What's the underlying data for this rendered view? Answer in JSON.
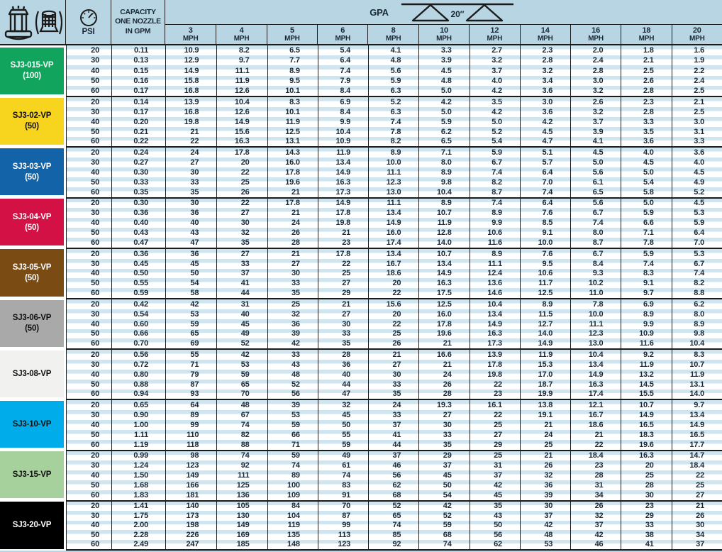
{
  "colors": {
    "table_background": "#b7d5e2",
    "row_stripe": "#cfe6f0",
    "grid_line": "#1b1b1b",
    "text": "#1a2836"
  },
  "icons": {
    "top_left": [
      "nozzle-tip-icon",
      "strainer-icon"
    ],
    "psi": "pressure-gauge-icon",
    "gpa": "spray-boom-spacing-icon"
  },
  "chart_data": {
    "type": "table",
    "header": {
      "psi_label": "PSI",
      "capacity_label_lines": [
        "CAPACITY",
        "ONE NOZZLE",
        "IN GPM"
      ],
      "gpa_label": "GPA",
      "nozzle_spacing": "20″",
      "speed_unit": "MPH",
      "speed_columns": [
        "3",
        "4",
        "5",
        "6",
        "8",
        "10",
        "12",
        "14",
        "16",
        "18",
        "20"
      ]
    },
    "groups": [
      {
        "nozzle": "SJ3-015-VP",
        "mesh": "(100)",
        "color": "#10a45c",
        "text_color": "#ffffff",
        "rows": [
          {
            "psi": "20",
            "gpm": "0.11",
            "gpa": [
              "10.9",
              "8.2",
              "6.5",
              "5.4",
              "4.1",
              "3.3",
              "2.7",
              "2.3",
              "2.0",
              "1.8",
              "1.6"
            ]
          },
          {
            "psi": "30",
            "gpm": "0.13",
            "gpa": [
              "12.9",
              "9.7",
              "7.7",
              "6.4",
              "4.8",
              "3.9",
              "3.2",
              "2.8",
              "2.4",
              "2.1",
              "1.9"
            ]
          },
          {
            "psi": "40",
            "gpm": "0.15",
            "gpa": [
              "14.9",
              "11.1",
              "8.9",
              "7.4",
              "5.6",
              "4.5",
              "3.7",
              "3.2",
              "2.8",
              "2.5",
              "2.2"
            ]
          },
          {
            "psi": "50",
            "gpm": "0.16",
            "gpa": [
              "15.8",
              "11.9",
              "9.5",
              "7.9",
              "5.9",
              "4.8",
              "4.0",
              "3.4",
              "3.0",
              "2.6",
              "2.4"
            ]
          },
          {
            "psi": "60",
            "gpm": "0.17",
            "gpa": [
              "16.8",
              "12.6",
              "10.1",
              "8.4",
              "6.3",
              "5.0",
              "4.2",
              "3.6",
              "3.2",
              "2.8",
              "2.5"
            ]
          }
        ]
      },
      {
        "nozzle": "SJ3-02-VP",
        "mesh": "(50)",
        "color": "#f7d41e",
        "text_color": "#111111",
        "rows": [
          {
            "psi": "20",
            "gpm": "0.14",
            "gpa": [
              "13.9",
              "10.4",
              "8.3",
              "6.9",
              "5.2",
              "4.2",
              "3.5",
              "3.0",
              "2.6",
              "2.3",
              "2.1"
            ]
          },
          {
            "psi": "30",
            "gpm": "0.17",
            "gpa": [
              "16.8",
              "12.6",
              "10.1",
              "8.4",
              "6.3",
              "5.0",
              "4.2",
              "3.6",
              "3.2",
              "2.8",
              "2.5"
            ]
          },
          {
            "psi": "40",
            "gpm": "0.20",
            "gpa": [
              "19.8",
              "14.9",
              "11.9",
              "9.9",
              "7.4",
              "5.9",
              "5.0",
              "4.2",
              "3.7",
              "3.3",
              "3.0"
            ]
          },
          {
            "psi": "50",
            "gpm": "0.21",
            "gpa": [
              "21",
              "15.6",
              "12.5",
              "10.4",
              "7.8",
              "6.2",
              "5.2",
              "4.5",
              "3.9",
              "3.5",
              "3.1"
            ]
          },
          {
            "psi": "60",
            "gpm": "0.22",
            "gpa": [
              "22",
              "16.3",
              "13.1",
              "10.9",
              "8.2",
              "6.5",
              "5.4",
              "4.7",
              "4.1",
              "3.6",
              "3.3"
            ]
          }
        ]
      },
      {
        "nozzle": "SJ3-03-VP",
        "mesh": "(50)",
        "color": "#1263a8",
        "text_color": "#ffffff",
        "rows": [
          {
            "psi": "20",
            "gpm": "0.24",
            "gpa": [
              "24",
              "17.8",
              "14.3",
              "11.9",
              "8.9",
              "7.1",
              "5.9",
              "5.1",
              "4.5",
              "4.0",
              "3.6"
            ]
          },
          {
            "psi": "30",
            "gpm": "0.27",
            "gpa": [
              "27",
              "20",
              "16.0",
              "13.4",
              "10.0",
              "8.0",
              "6.7",
              "5.7",
              "5.0",
              "4.5",
              "4.0"
            ]
          },
          {
            "psi": "40",
            "gpm": "0.30",
            "gpa": [
              "30",
              "22",
              "17.8",
              "14.9",
              "11.1",
              "8.9",
              "7.4",
              "6.4",
              "5.6",
              "5.0",
              "4.5"
            ]
          },
          {
            "psi": "50",
            "gpm": "0.33",
            "gpa": [
              "33",
              "25",
              "19.6",
              "16.3",
              "12.3",
              "9.8",
              "8.2",
              "7.0",
              "6.1",
              "5.4",
              "4.9"
            ]
          },
          {
            "psi": "60",
            "gpm": "0.35",
            "gpa": [
              "35",
              "26",
              "21",
              "17.3",
              "13.0",
              "10.4",
              "8.7",
              "7.4",
              "6.5",
              "5.8",
              "5.2"
            ]
          }
        ]
      },
      {
        "nozzle": "SJ3-04-VP",
        "mesh": "(50)",
        "color": "#d31145",
        "text_color": "#ffffff",
        "rows": [
          {
            "psi": "20",
            "gpm": "0.30",
            "gpa": [
              "30",
              "22",
              "17.8",
              "14.9",
              "11.1",
              "8.9",
              "7.4",
              "6.4",
              "5.6",
              "5.0",
              "4.5"
            ]
          },
          {
            "psi": "30",
            "gpm": "0.36",
            "gpa": [
              "36",
              "27",
              "21",
              "17.8",
              "13.4",
              "10.7",
              "8.9",
              "7.6",
              "6.7",
              "5.9",
              "5.3"
            ]
          },
          {
            "psi": "40",
            "gpm": "0.40",
            "gpa": [
              "40",
              "30",
              "24",
              "19.8",
              "14.9",
              "11.9",
              "9.9",
              "8.5",
              "7.4",
              "6.6",
              "5.9"
            ]
          },
          {
            "psi": "50",
            "gpm": "0.43",
            "gpa": [
              "43",
              "32",
              "26",
              "21",
              "16.0",
              "12.8",
              "10.6",
              "9.1",
              "8.0",
              "7.1",
              "6.4"
            ]
          },
          {
            "psi": "60",
            "gpm": "0.47",
            "gpa": [
              "47",
              "35",
              "28",
              "23",
              "17.4",
              "14.0",
              "11.6",
              "10.0",
              "8.7",
              "7.8",
              "7.0"
            ]
          }
        ]
      },
      {
        "nozzle": "SJ3-05-VP",
        "mesh": "(50)",
        "color": "#7b4b14",
        "text_color": "#ffffff",
        "rows": [
          {
            "psi": "20",
            "gpm": "0.36",
            "gpa": [
              "36",
              "27",
              "21",
              "17.8",
              "13.4",
              "10.7",
              "8.9",
              "7.6",
              "6.7",
              "5.9",
              "5.3"
            ]
          },
          {
            "psi": "30",
            "gpm": "0.45",
            "gpa": [
              "45",
              "33",
              "27",
              "22",
              "16.7",
              "13.4",
              "11.1",
              "9.5",
              "8.4",
              "7.4",
              "6.7"
            ]
          },
          {
            "psi": "40",
            "gpm": "0.50",
            "gpa": [
              "50",
              "37",
              "30",
              "25",
              "18.6",
              "14.9",
              "12.4",
              "10.6",
              "9.3",
              "8.3",
              "7.4"
            ]
          },
          {
            "psi": "50",
            "gpm": "0.55",
            "gpa": [
              "54",
              "41",
              "33",
              "27",
              "20",
              "16.3",
              "13.6",
              "11.7",
              "10.2",
              "9.1",
              "8.2"
            ]
          },
          {
            "psi": "60",
            "gpm": "0.59",
            "gpa": [
              "58",
              "44",
              "35",
              "29",
              "22",
              "17.5",
              "14.6",
              "12.5",
              "11.0",
              "9.7",
              "8.8"
            ]
          }
        ]
      },
      {
        "nozzle": "SJ3-06-VP",
        "mesh": "(50)",
        "color": "#a9a9a9",
        "text_color": "#111111",
        "rows": [
          {
            "psi": "20",
            "gpm": "0.42",
            "gpa": [
              "42",
              "31",
              "25",
              "21",
              "15.6",
              "12.5",
              "10.4",
              "8.9",
              "7.8",
              "6.9",
              "6.2"
            ]
          },
          {
            "psi": "30",
            "gpm": "0.54",
            "gpa": [
              "53",
              "40",
              "32",
              "27",
              "20",
              "16.0",
              "13.4",
              "11.5",
              "10.0",
              "8.9",
              "8.0"
            ]
          },
          {
            "psi": "40",
            "gpm": "0.60",
            "gpa": [
              "59",
              "45",
              "36",
              "30",
              "22",
              "17.8",
              "14.9",
              "12.7",
              "11.1",
              "9.9",
              "8.9"
            ]
          },
          {
            "psi": "50",
            "gpm": "0.66",
            "gpa": [
              "65",
              "49",
              "39",
              "33",
              "25",
              "19.6",
              "16.3",
              "14.0",
              "12.3",
              "10.9",
              "9.8"
            ]
          },
          {
            "psi": "60",
            "gpm": "0.70",
            "gpa": [
              "69",
              "52",
              "42",
              "35",
              "26",
              "21",
              "17.3",
              "14.9",
              "13.0",
              "11.6",
              "10.4"
            ]
          }
        ]
      },
      {
        "nozzle": "SJ3-08-VP",
        "mesh": "",
        "color": "#f1f1ef",
        "text_color": "#111111",
        "rows": [
          {
            "psi": "20",
            "gpm": "0.56",
            "gpa": [
              "55",
              "42",
              "33",
              "28",
              "21",
              "16.6",
              "13.9",
              "11.9",
              "10.4",
              "9.2",
              "8.3"
            ]
          },
          {
            "psi": "30",
            "gpm": "0.72",
            "gpa": [
              "71",
              "53",
              "43",
              "36",
              "27",
              "21",
              "17.8",
              "15.3",
              "13.4",
              "11.9",
              "10.7"
            ]
          },
          {
            "psi": "40",
            "gpm": "0.80",
            "gpa": [
              "79",
              "59",
              "48",
              "40",
              "30",
              "24",
              "19.8",
              "17.0",
              "14.9",
              "13.2",
              "11.9"
            ]
          },
          {
            "psi": "50",
            "gpm": "0.88",
            "gpa": [
              "87",
              "65",
              "52",
              "44",
              "33",
              "26",
              "22",
              "18.7",
              "16.3",
              "14.5",
              "13.1"
            ]
          },
          {
            "psi": "60",
            "gpm": "0.94",
            "gpa": [
              "93",
              "70",
              "56",
              "47",
              "35",
              "28",
              "23",
              "19.9",
              "17.4",
              "15.5",
              "14.0"
            ]
          }
        ]
      },
      {
        "nozzle": "SJ3-10-VP",
        "mesh": "",
        "color": "#00adea",
        "text_color": "#111111",
        "rows": [
          {
            "psi": "20",
            "gpm": "0.65",
            "gpa": [
              "64",
              "48",
              "39",
              "32",
              "24",
              "19.3",
              "16.1",
              "13.8",
              "12.1",
              "10.7",
              "9.7"
            ]
          },
          {
            "psi": "30",
            "gpm": "0.90",
            "gpa": [
              "89",
              "67",
              "53",
              "45",
              "33",
              "27",
              "22",
              "19.1",
              "16.7",
              "14.9",
              "13.4"
            ]
          },
          {
            "psi": "40",
            "gpm": "1.00",
            "gpa": [
              "99",
              "74",
              "59",
              "50",
              "37",
              "30",
              "25",
              "21",
              "18.6",
              "16.5",
              "14.9"
            ]
          },
          {
            "psi": "50",
            "gpm": "1.11",
            "gpa": [
              "110",
              "82",
              "66",
              "55",
              "41",
              "33",
              "27",
              "24",
              "21",
              "18.3",
              "16.5"
            ]
          },
          {
            "psi": "60",
            "gpm": "1.19",
            "gpa": [
              "118",
              "88",
              "71",
              "59",
              "44",
              "35",
              "29",
              "25",
              "22",
              "19.6",
              "17.7"
            ]
          }
        ]
      },
      {
        "nozzle": "SJ3-15-VP",
        "mesh": "",
        "color": "#a7d19c",
        "text_color": "#111111",
        "rows": [
          {
            "psi": "20",
            "gpm": "0.99",
            "gpa": [
              "98",
              "74",
              "59",
              "49",
              "37",
              "29",
              "25",
              "21",
              "18.4",
              "16.3",
              "14.7"
            ]
          },
          {
            "psi": "30",
            "gpm": "1.24",
            "gpa": [
              "123",
              "92",
              "74",
              "61",
              "46",
              "37",
              "31",
              "26",
              "23",
              "20",
              "18.4"
            ]
          },
          {
            "psi": "40",
            "gpm": "1.50",
            "gpa": [
              "149",
              "111",
              "89",
              "74",
              "56",
              "45",
              "37",
              "32",
              "28",
              "25",
              "22"
            ]
          },
          {
            "psi": "50",
            "gpm": "1.68",
            "gpa": [
              "166",
              "125",
              "100",
              "83",
              "62",
              "50",
              "42",
              "36",
              "31",
              "28",
              "25"
            ]
          },
          {
            "psi": "60",
            "gpm": "1.83",
            "gpa": [
              "181",
              "136",
              "109",
              "91",
              "68",
              "54",
              "45",
              "39",
              "34",
              "30",
              "27"
            ]
          }
        ]
      },
      {
        "nozzle": "SJ3-20-VP",
        "mesh": "",
        "color": "#000000",
        "text_color": "#ffffff",
        "rows": [
          {
            "psi": "20",
            "gpm": "1.41",
            "gpa": [
              "140",
              "105",
              "84",
              "70",
              "52",
              "42",
              "35",
              "30",
              "26",
              "23",
              "21"
            ]
          },
          {
            "psi": "30",
            "gpm": "1.75",
            "gpa": [
              "173",
              "130",
              "104",
              "87",
              "65",
              "52",
              "43",
              "37",
              "32",
              "29",
              "26"
            ]
          },
          {
            "psi": "40",
            "gpm": "2.00",
            "gpa": [
              "198",
              "149",
              "119",
              "99",
              "74",
              "59",
              "50",
              "42",
              "37",
              "33",
              "30"
            ]
          },
          {
            "psi": "50",
            "gpm": "2.28",
            "gpa": [
              "226",
              "169",
              "135",
              "113",
              "85",
              "68",
              "56",
              "48",
              "42",
              "38",
              "34"
            ]
          },
          {
            "psi": "60",
            "gpm": "2.49",
            "gpa": [
              "247",
              "185",
              "148",
              "123",
              "92",
              "74",
              "62",
              "53",
              "46",
              "41",
              "37"
            ]
          }
        ]
      }
    ]
  }
}
